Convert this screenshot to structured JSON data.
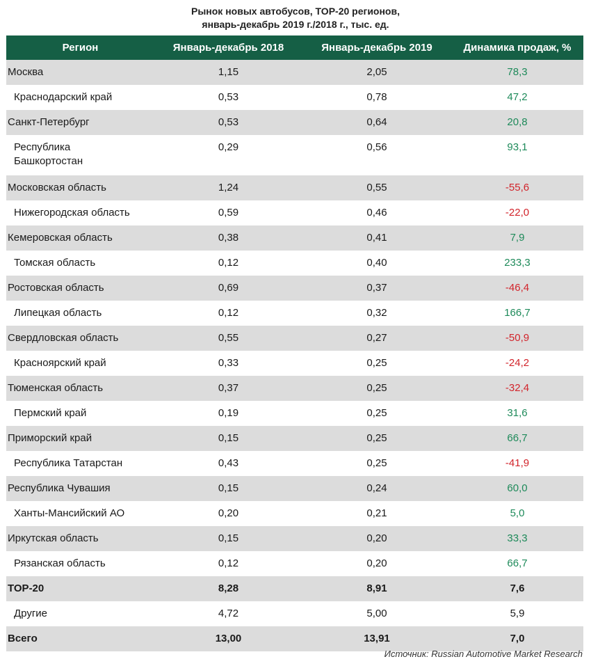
{
  "chart_data": {
    "type": "table",
    "title": "Рынок новых автобусов, TOP-20 регионов,\nянварь-декабрь 2019 г./2018 г., тыс. ед.",
    "title_lines": [
      "Рынок новых автобусов, TOP-20 регионов,",
      "январь-декабрь 2019 г./2018 г., тыс. ед."
    ],
    "columns": [
      "Регион",
      "Январь-декабрь 2018",
      "Январь-декабрь 2019",
      "Динамика продаж, %"
    ],
    "rows": [
      {
        "region": "Москва",
        "y2018": "1,15",
        "y2019": "2,05",
        "dyn": "78,3",
        "indent": false,
        "shaded": true
      },
      {
        "region": "Краснодарский край",
        "y2018": "0,53",
        "y2019": "0,78",
        "dyn": "47,2",
        "indent": true,
        "shaded": false
      },
      {
        "region": "Санкт-Петербург",
        "y2018": "0,53",
        "y2019": "0,64",
        "dyn": "20,8",
        "indent": false,
        "shaded": true
      },
      {
        "region": "Республика Башкортостан",
        "y2018": "0,29",
        "y2019": "0,56",
        "dyn": "93,1",
        "indent": true,
        "shaded": false,
        "tall": true
      },
      {
        "region": "Московская область",
        "y2018": "1,24",
        "y2019": "0,55",
        "dyn": "-55,6",
        "indent": false,
        "shaded": true
      },
      {
        "region": "Нижегородская область",
        "y2018": "0,59",
        "y2019": "0,46",
        "dyn": "-22,0",
        "indent": true,
        "shaded": false
      },
      {
        "region": "Кемеровская область",
        "y2018": "0,38",
        "y2019": "0,41",
        "dyn": "7,9",
        "indent": false,
        "shaded": true
      },
      {
        "region": "Томская область",
        "y2018": "0,12",
        "y2019": "0,40",
        "dyn": "233,3",
        "indent": true,
        "shaded": false
      },
      {
        "region": "Ростовская область",
        "y2018": "0,69",
        "y2019": "0,37",
        "dyn": "-46,4",
        "indent": false,
        "shaded": true
      },
      {
        "region": "Липецкая область",
        "y2018": "0,12",
        "y2019": "0,32",
        "dyn": "166,7",
        "indent": true,
        "shaded": false
      },
      {
        "region": "Свердловская область",
        "y2018": "0,55",
        "y2019": "0,27",
        "dyn": "-50,9",
        "indent": false,
        "shaded": true
      },
      {
        "region": "Красноярский край",
        "y2018": "0,33",
        "y2019": "0,25",
        "dyn": "-24,2",
        "indent": true,
        "shaded": false
      },
      {
        "region": "Тюменская область",
        "y2018": "0,37",
        "y2019": "0,25",
        "dyn": "-32,4",
        "indent": false,
        "shaded": true
      },
      {
        "region": "Пермский край",
        "y2018": "0,19",
        "y2019": "0,25",
        "dyn": "31,6",
        "indent": true,
        "shaded": false
      },
      {
        "region": "Приморский край",
        "y2018": "0,15",
        "y2019": "0,25",
        "dyn": "66,7",
        "indent": false,
        "shaded": true
      },
      {
        "region": "Республика Татарстан",
        "y2018": "0,43",
        "y2019": "0,25",
        "dyn": "-41,9",
        "indent": true,
        "shaded": false
      },
      {
        "region": "Республика Чувашия",
        "y2018": "0,15",
        "y2019": "0,24",
        "dyn": "60,0",
        "indent": false,
        "shaded": true
      },
      {
        "region": "Ханты-Мансийский АО",
        "y2018": "0,20",
        "y2019": "0,21",
        "dyn": "5,0",
        "indent": true,
        "shaded": false
      },
      {
        "region": "Иркутская область",
        "y2018": "0,15",
        "y2019": "0,20",
        "dyn": "33,3",
        "indent": false,
        "shaded": true
      },
      {
        "region": "Рязанская область",
        "y2018": "0,12",
        "y2019": "0,20",
        "dyn": "66,7",
        "indent": true,
        "shaded": false
      },
      {
        "region": "TOP-20",
        "y2018": "8,28",
        "y2019": "8,91",
        "dyn": "7,6",
        "indent": false,
        "shaded": true,
        "bold": true
      },
      {
        "region": "Другие",
        "y2018": "4,72",
        "y2019": "5,00",
        "dyn": "5,9",
        "indent": true,
        "shaded": false,
        "neutral": true
      },
      {
        "region": "Всего",
        "y2018": "13,00",
        "y2019": "13,91",
        "dyn": "7,0",
        "indent": false,
        "shaded": true,
        "bold": true
      }
    ],
    "colors": {
      "header_bg": "#155f45",
      "row_shade": "#dcdcdc",
      "positive": "#1e8a5a",
      "negative": "#d2242b"
    }
  },
  "source": "Источник: Russian Automotive Market Research"
}
